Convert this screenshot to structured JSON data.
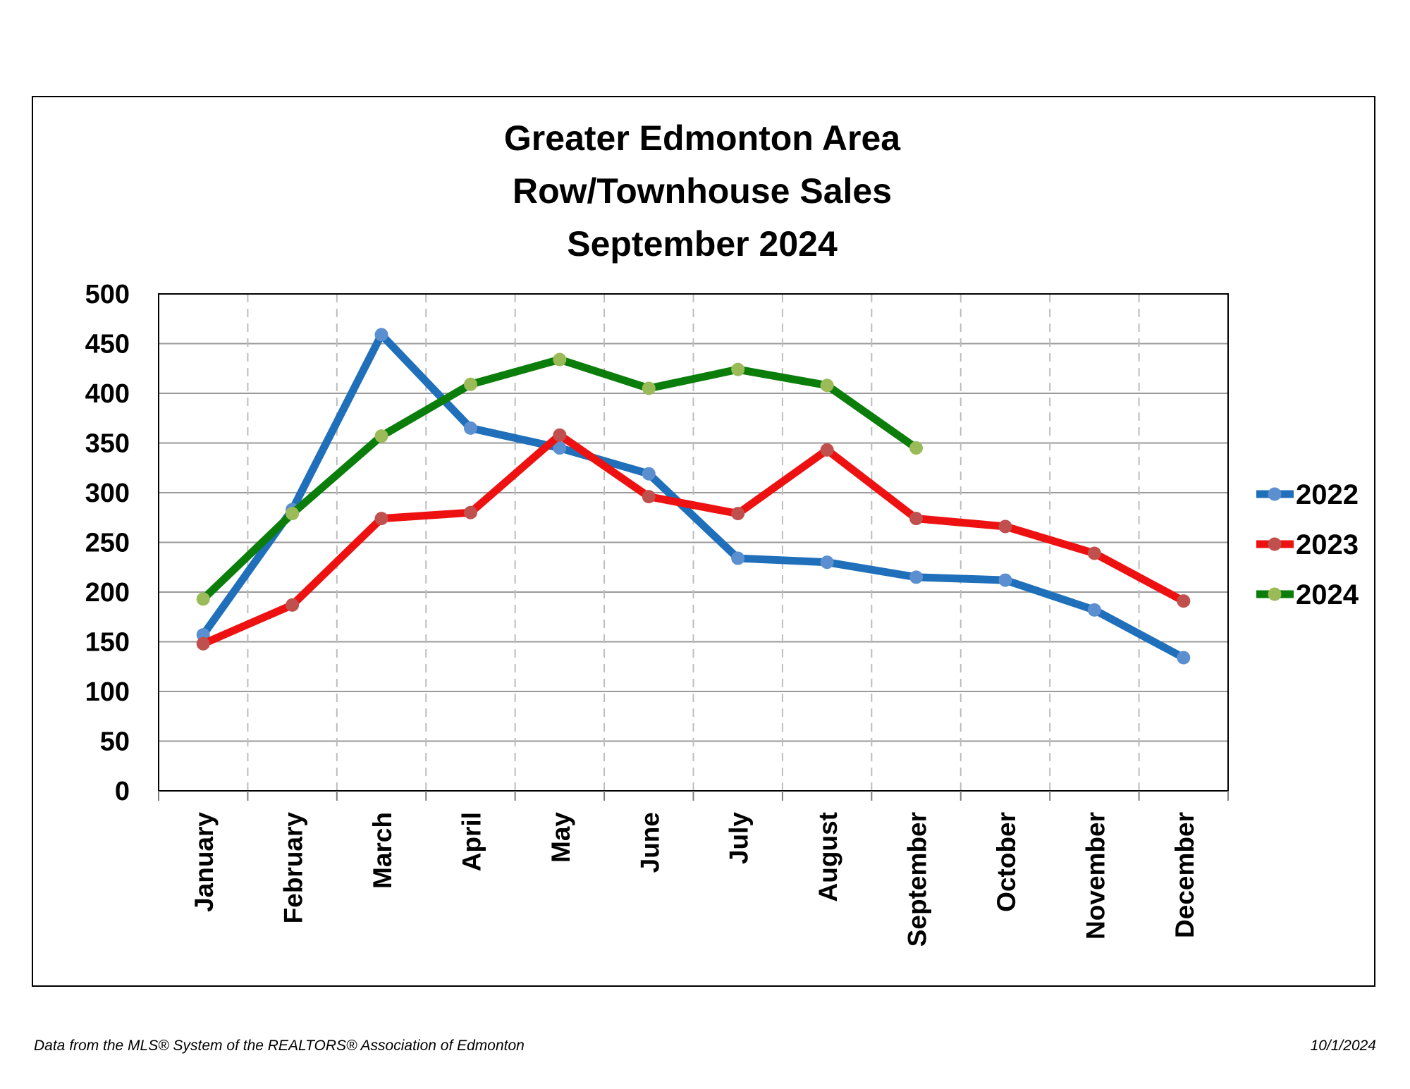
{
  "chart_data": {
    "type": "line",
    "title_lines": [
      "Greater Edmonton Area",
      "Row/Townhouse Sales",
      "September 2024"
    ],
    "categories": [
      "January",
      "February",
      "March",
      "April",
      "May",
      "June",
      "July",
      "August",
      "September",
      "October",
      "November",
      "December"
    ],
    "ylim": [
      0,
      500
    ],
    "yticks": [
      "0",
      "50",
      "100",
      "150",
      "200",
      "250",
      "300",
      "350",
      "400",
      "450",
      "500"
    ],
    "series": [
      {
        "name": "2022",
        "color": "#1f6fba",
        "marker_color": "#5b8fd0",
        "values": [
          157,
          283,
          459,
          365,
          345,
          319,
          234,
          230,
          215,
          212,
          182,
          134
        ]
      },
      {
        "name": "2023",
        "color": "#ee1111",
        "marker_color": "#c0504d",
        "values": [
          148,
          187,
          274,
          280,
          358,
          296,
          279,
          343,
          274,
          266,
          239,
          191
        ]
      },
      {
        "name": "2024",
        "color": "#0b7d0b",
        "marker_color": "#9bbb59",
        "values": [
          193,
          279,
          357,
          409,
          434,
          405,
          424,
          408,
          345,
          null,
          null,
          null
        ]
      }
    ],
    "grid": {
      "horizontal": true,
      "vertical": "dashed"
    },
    "legend": "right"
  },
  "footer": {
    "source": "Data from the MLS® System of the REALTORS® Association of Edmonton",
    "date": "10/1/2024"
  }
}
